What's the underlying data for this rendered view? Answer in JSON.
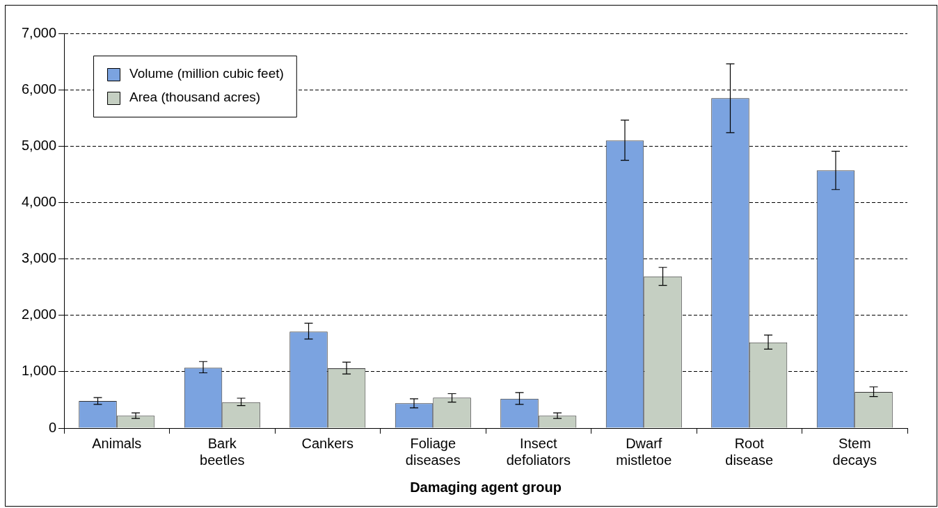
{
  "chart_data": {
    "type": "bar",
    "xlabel": "Damaging agent group",
    "categories": [
      "Animals",
      "Bark beetles",
      "Cankers",
      "Foliage diseases",
      "Insect defoliators",
      "Dwarf mistletoe",
      "Root disease",
      "Stem decays"
    ],
    "series": [
      {
        "name": "Volume (million cubic feet)",
        "color": "#7ba3e0",
        "values": [
          480,
          1070,
          1710,
          440,
          520,
          5100,
          5850,
          4570
        ],
        "errors": [
          [
            420,
            540
          ],
          [
            980,
            1180
          ],
          [
            1580,
            1860
          ],
          [
            360,
            520
          ],
          [
            420,
            630
          ],
          [
            4750,
            5460
          ],
          [
            5240,
            6460
          ],
          [
            4230,
            4910
          ]
        ]
      },
      {
        "name": "Area (thousand acres)",
        "color": "#c5cfc2",
        "values": [
          220,
          460,
          1060,
          540,
          220,
          2690,
          1520,
          640
        ],
        "errors": [
          [
            170,
            270
          ],
          [
            400,
            530
          ],
          [
            960,
            1170
          ],
          [
            460,
            610
          ],
          [
            170,
            270
          ],
          [
            2530,
            2850
          ],
          [
            1400,
            1650
          ],
          [
            560,
            730
          ]
        ]
      }
    ],
    "ylim": [
      0,
      7000
    ],
    "yticks": [
      0,
      {
        "value": 1000,
        "label": "1,000"
      },
      {
        "value": 2000,
        "label": "2,000"
      },
      {
        "value": 3000,
        "label": "3,000"
      },
      {
        "value": 4000,
        "label": "4,000"
      },
      {
        "value": 5000,
        "label": "5,000"
      },
      {
        "value": 6000,
        "label": "6,000"
      },
      {
        "value": 7000,
        "label": "7,000"
      }
    ],
    "grid": "y",
    "legend": "top left"
  }
}
